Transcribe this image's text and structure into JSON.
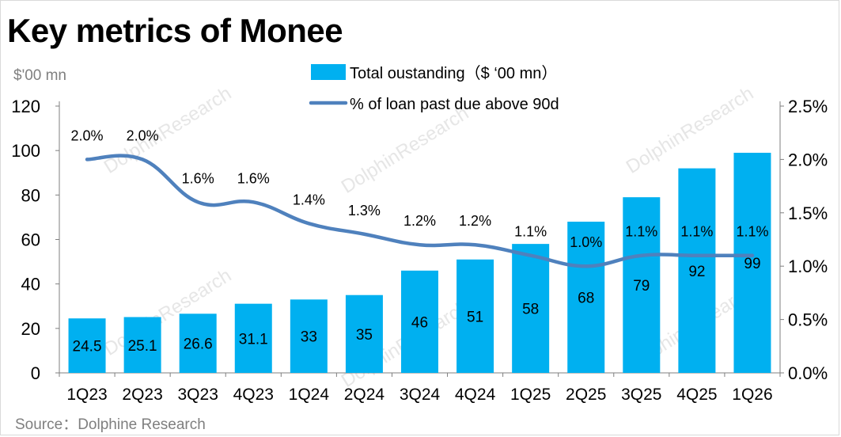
{
  "title": "Key metrics of Monee",
  "unit_label": "$'00 mn",
  "source": "Source：Dolphine Research",
  "watermark": "DolphinResearch",
  "colors": {
    "bar": "#00b0f0",
    "line": "#4f81bd",
    "axis": "#7f7f7f",
    "text": "#000000"
  },
  "chart_data": {
    "type": "bar",
    "categories": [
      "1Q23",
      "2Q23",
      "3Q23",
      "4Q23",
      "1Q24",
      "2Q24",
      "3Q24",
      "4Q24",
      "1Q25",
      "2Q25",
      "3Q25",
      "4Q25",
      "1Q26"
    ],
    "series": [
      {
        "name": "Total oustanding（$ ‘00 mn）",
        "type": "bar",
        "axis": "left",
        "values": [
          24.5,
          25.1,
          26.6,
          31.1,
          33,
          35,
          46,
          51,
          58,
          68,
          79,
          92,
          99
        ],
        "labels": [
          "24.5",
          "25.1",
          "26.6",
          "31.1",
          "33",
          "35",
          "46",
          "51",
          "58",
          "68",
          "79",
          "92",
          "99"
        ]
      },
      {
        "name": "% of loan past due above 90d",
        "type": "line",
        "axis": "right",
        "values": [
          2.0,
          2.0,
          1.6,
          1.6,
          1.4,
          1.3,
          1.2,
          1.2,
          1.1,
          1.0,
          1.1,
          1.1,
          1.1
        ],
        "labels": [
          "2.0%",
          "2.0%",
          "1.6%",
          "1.6%",
          "1.4%",
          "1.3%",
          "1.2%",
          "1.2%",
          "1.1%",
          "1.0%",
          "1.1%",
          "1.1%",
          "1.1%"
        ]
      }
    ],
    "y_left": {
      "min": 0,
      "max": 120,
      "ticks": [
        0,
        20,
        40,
        60,
        80,
        100,
        120
      ],
      "tick_labels": [
        "0",
        "20",
        "40",
        "60",
        "80",
        "100",
        "120"
      ]
    },
    "y_right": {
      "min": 0,
      "max": 2.5,
      "ticks": [
        0,
        0.5,
        1.0,
        1.5,
        2.0,
        2.5
      ],
      "tick_labels": [
        "0.0%",
        "0.5%",
        "1.0%",
        "1.5%",
        "2.0%",
        "2.5%"
      ]
    },
    "legend": "top-center",
    "grid": false
  }
}
